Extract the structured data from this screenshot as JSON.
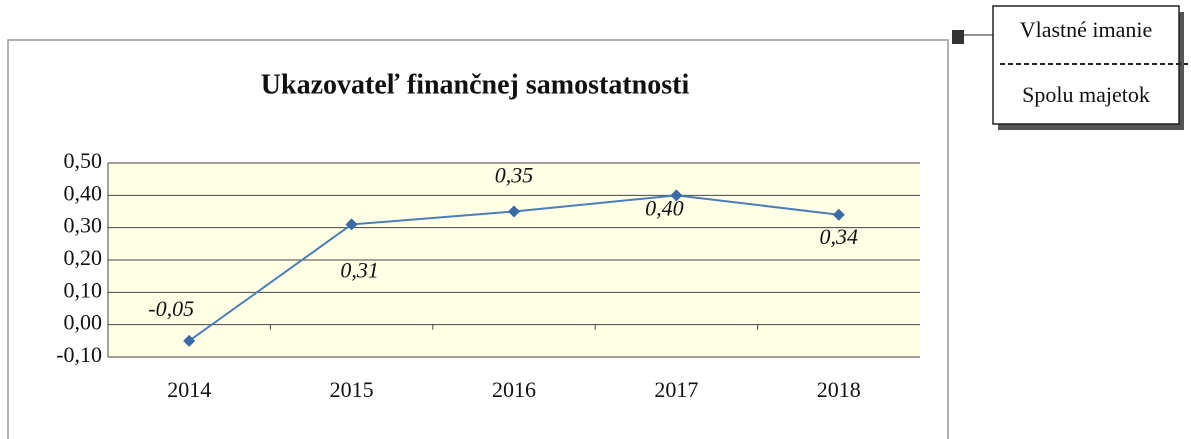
{
  "chart_data": {
    "type": "line",
    "title": "Ukazovateľ finančnej samostatnosti",
    "categories": [
      "2014",
      "2015",
      "2016",
      "2017",
      "2018"
    ],
    "values": [
      -0.05,
      0.31,
      0.35,
      0.4,
      0.34
    ],
    "value_labels": [
      "-0,05",
      "0,31",
      "0,35",
      "0,40",
      "0,34"
    ],
    "color": "#4a7ebb",
    "ylim": [
      -0.1,
      0.5
    ],
    "yticks": [
      {
        "value": -0.1,
        "label": "-0,10"
      },
      {
        "value": 0.0,
        "label": "0,00"
      },
      {
        "value": 0.1,
        "label": "0,10"
      },
      {
        "value": 0.2,
        "label": "0,20"
      },
      {
        "value": 0.3,
        "label": "0,30"
      },
      {
        "value": 0.4,
        "label": "0,40"
      },
      {
        "value": 0.5,
        "label": "0,50"
      }
    ],
    "grid": true,
    "formula": {
      "numerator": "Vlastné imanie",
      "denominator": "Spolu majetok"
    }
  }
}
